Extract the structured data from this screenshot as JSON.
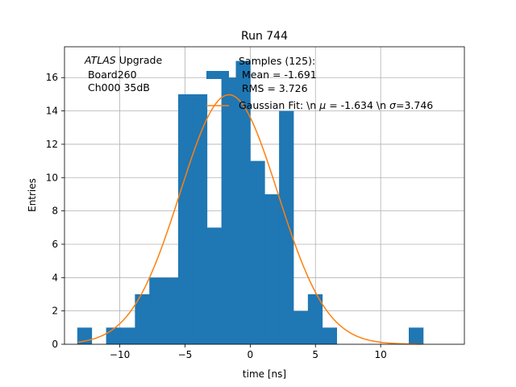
{
  "chart_data": {
    "type": "bar",
    "title": "Run 744",
    "xlabel": "time [ns]",
    "ylabel": "Entries",
    "xlim": [
      -14.24,
      16.42
    ],
    "ylim": [
      0,
      17.85
    ],
    "x_ticks": [
      -10,
      -5,
      0,
      5,
      10
    ],
    "y_ticks": [
      0,
      2,
      4,
      6,
      8,
      10,
      12,
      14,
      16
    ],
    "grid": true,
    "bin_width": 1.105,
    "histogram": {
      "bin_edges": [
        -13.26,
        -12.155,
        -11.05,
        -9.945,
        -8.84,
        -7.735,
        -6.63,
        -5.525,
        -4.42,
        -3.315,
        -2.21,
        -1.105,
        0.0,
        1.105,
        2.21,
        3.315,
        4.42,
        5.525,
        6.63,
        7.735,
        8.84,
        9.945,
        11.05,
        12.155,
        13.26
      ],
      "counts": [
        1,
        0,
        1,
        1,
        3,
        4,
        4,
        15,
        15,
        7,
        16,
        17,
        11,
        9,
        14,
        2,
        3,
        1,
        0,
        0,
        0,
        0,
        0,
        1
      ]
    },
    "gaussian_fit": {
      "mu": -1.634,
      "sigma": 3.746,
      "amplitude": 14.97,
      "x_range": [
        -13.2,
        13.2
      ]
    },
    "annotation_lines": [
      "ATLAS Upgrade",
      " Board260",
      " Ch000 35dB"
    ],
    "annotation_italic_word": "ATLAS",
    "annotation_rest": " Upgrade",
    "legend": {
      "position": "upper-center",
      "hist_lines": [
        "Samples (125):",
        " Mean = -1.691",
        " RMS = 3.726"
      ],
      "fit_label_parts": [
        "Gaussian Fit: \\n ",
        "μ",
        " = -1.634 \\n ",
        "σ",
        "=3.746"
      ]
    },
    "colors": {
      "hist": "#1f77b4",
      "fit": "#ff7f0e",
      "grid": "#b0b0b0"
    }
  }
}
